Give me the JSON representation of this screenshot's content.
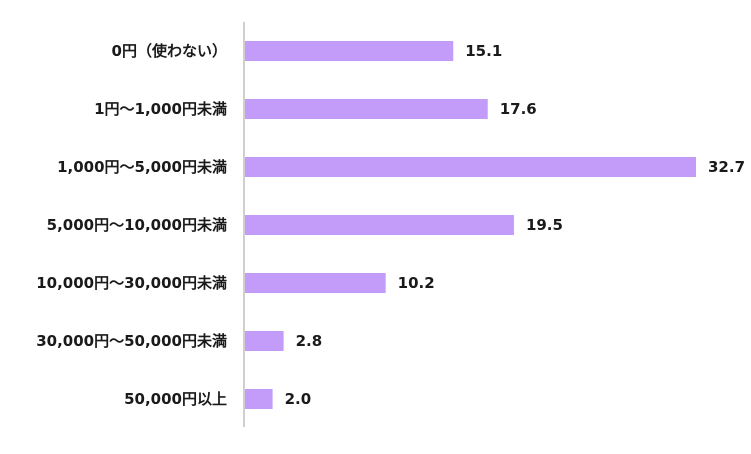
{
  "chart_data": {
    "type": "bar",
    "orientation": "horizontal",
    "categories": [
      "0円（使わない）",
      "1円～1,000円未満",
      "1,000円～5,000円未満",
      "5,000円～10,000円未満",
      "10,000円～30,000円未満",
      "30,000円～50,000円未満",
      "50,000円以上"
    ],
    "values": [
      15.1,
      17.6,
      32.7,
      19.5,
      10.2,
      2.8,
      2.0
    ],
    "value_labels": [
      "15.1",
      "17.6",
      "32.7",
      "19.5",
      "10.2",
      "2.8",
      "2.0"
    ],
    "title": "",
    "xlabel": "",
    "ylabel": "",
    "xlim": [
      0,
      32.7
    ],
    "grid": false,
    "legend": "none",
    "bar_color": "#c39cfa",
    "axis_color": "#bfbfbf"
  }
}
